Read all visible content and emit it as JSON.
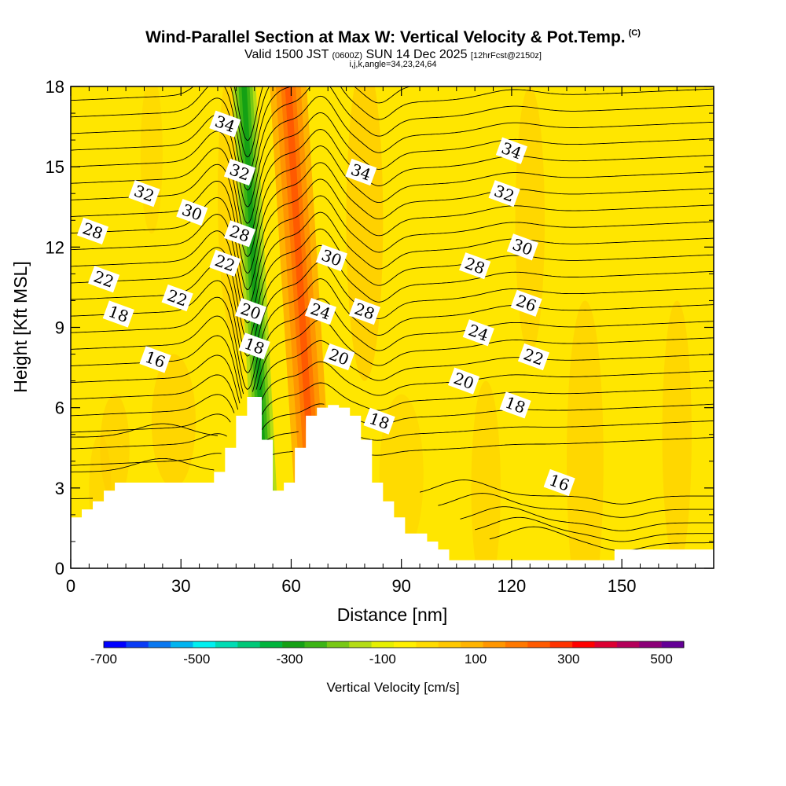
{
  "header": {
    "title": "Wind-Parallel Section at Max W: Vertical Velocity & Pot.Temp.",
    "copyright": "(C)",
    "subtitle_main": "Valid 1500 JST",
    "subtitle_utc": "(0600Z)",
    "subtitle_date": "SUN 14 Dec 2025",
    "subtitle_fcst": "[12hrFcst@2150z]",
    "params": "i,j,k,angle=34,23,24,64"
  },
  "chart_data": {
    "type": "heatmap",
    "title": "Wind-Parallel Section at Max W: Vertical Velocity & Pot.Temp.",
    "xlabel": "Distance [nm]",
    "ylabel": "Height [Kft MSL]",
    "xlim": [
      0,
      175
    ],
    "ylim": [
      0,
      18
    ],
    "x_ticks": [
      "0",
      "30",
      "60",
      "90",
      "120",
      "150"
    ],
    "x_tick_values": [
      0,
      30,
      60,
      90,
      120,
      150
    ],
    "y_ticks": [
      "0",
      "3",
      "6",
      "9",
      "12",
      "15",
      "18"
    ],
    "y_tick_values": [
      0,
      3,
      6,
      9,
      12,
      15,
      18
    ],
    "terrain": {
      "x": [
        0,
        3,
        6,
        9,
        12,
        15,
        18,
        21,
        24,
        27,
        30,
        33,
        36,
        39,
        42,
        45,
        48,
        51,
        52,
        55,
        58,
        61,
        64,
        67,
        70,
        73,
        76,
        79,
        82,
        85,
        88,
        91,
        94,
        97,
        100,
        103,
        106,
        109,
        112,
        115,
        118,
        121,
        124,
        127,
        130,
        133,
        136,
        139,
        142,
        145,
        148,
        151,
        154,
        157,
        160,
        163,
        166,
        169,
        172,
        175
      ],
      "height": [
        1.9,
        2.2,
        2.5,
        2.9,
        3.2,
        3.2,
        3.2,
        3.2,
        3.2,
        3.2,
        3.2,
        3.2,
        3.2,
        3.6,
        4.5,
        5.7,
        6.4,
        6.4,
        4.8,
        2.9,
        3.2,
        4.5,
        5.7,
        6.0,
        6.1,
        6.0,
        5.7,
        4.8,
        3.2,
        2.5,
        1.9,
        1.3,
        1.3,
        1.0,
        0.7,
        0.3,
        0.3,
        0.3,
        0.3,
        0.3,
        0.3,
        0.3,
        0.3,
        0.3,
        0.3,
        0.3,
        0.3,
        0.3,
        0.3,
        0.3,
        0.7,
        0.7,
        0.7,
        0.7,
        0.7,
        0.7,
        0.7,
        0.7,
        0.7,
        0.7
      ]
    },
    "vertical_velocity_features": [
      {
        "name": "downdraft band",
        "x_bottom": 53,
        "x_top": 47,
        "value": -300
      },
      {
        "name": "updraft band",
        "x_bottom": 66,
        "x_top": 59,
        "value": 300
      }
    ],
    "theta_contour_labels": [
      {
        "text": "34",
        "x": 42,
        "y": 16.6
      },
      {
        "text": "32",
        "x": 46,
        "y": 14.8
      },
      {
        "text": "28",
        "x": 46,
        "y": 12.5
      },
      {
        "text": "22",
        "x": 42,
        "y": 11.4
      },
      {
        "text": "20",
        "x": 49,
        "y": 9.6
      },
      {
        "text": "18",
        "x": 50,
        "y": 8.3
      },
      {
        "text": "32",
        "x": 20,
        "y": 14.0
      },
      {
        "text": "30",
        "x": 33,
        "y": 13.3
      },
      {
        "text": "28",
        "x": 6,
        "y": 12.6
      },
      {
        "text": "22",
        "x": 9,
        "y": 10.8
      },
      {
        "text": "22",
        "x": 29,
        "y": 10.1
      },
      {
        "text": "18",
        "x": 13,
        "y": 9.5
      },
      {
        "text": "16",
        "x": 23,
        "y": 7.8
      },
      {
        "text": "34",
        "x": 79,
        "y": 14.8
      },
      {
        "text": "30",
        "x": 71,
        "y": 11.6
      },
      {
        "text": "24",
        "x": 68,
        "y": 9.6
      },
      {
        "text": "28",
        "x": 80,
        "y": 9.6
      },
      {
        "text": "20",
        "x": 73,
        "y": 7.9
      },
      {
        "text": "18",
        "x": 84,
        "y": 5.5
      },
      {
        "text": "34",
        "x": 120,
        "y": 15.6
      },
      {
        "text": "32",
        "x": 118,
        "y": 14.0
      },
      {
        "text": "30",
        "x": 123,
        "y": 12.0
      },
      {
        "text": "28",
        "x": 110,
        "y": 11.3
      },
      {
        "text": "26",
        "x": 124,
        "y": 9.9
      },
      {
        "text": "24",
        "x": 111,
        "y": 8.8
      },
      {
        "text": "22",
        "x": 126,
        "y": 7.9
      },
      {
        "text": "20",
        "x": 107,
        "y": 7.0
      },
      {
        "text": "18",
        "x": 121,
        "y": 6.1
      },
      {
        "text": "16",
        "x": 133,
        "y": 3.2
      }
    ],
    "colorbar": {
      "label": "Vertical Velocity [cm/s]",
      "tick_labels": [
        "-700",
        "-500",
        "-300",
        "-100",
        "100",
        "300",
        "500"
      ],
      "tick_values": [
        -700,
        -500,
        -300,
        -100,
        100,
        300,
        500
      ],
      "colors": [
        "#0000ff",
        "#0a3cf5",
        "#0a78f0",
        "#00b4f0",
        "#00f0f0",
        "#00dcb4",
        "#00c878",
        "#00b43c",
        "#14a014",
        "#3cb414",
        "#78c814",
        "#b4dc14",
        "#e6f000",
        "#fff000",
        "#ffdc00",
        "#ffc800",
        "#ffb400",
        "#ff9600",
        "#ff7800",
        "#ff5a00",
        "#ff3200",
        "#ff0000",
        "#dc0032",
        "#b4005a",
        "#8c0078",
        "#640096"
      ]
    }
  },
  "colors": {
    "background": "#ffe600",
    "terrain": "#ffffff",
    "contour": "#000000"
  }
}
